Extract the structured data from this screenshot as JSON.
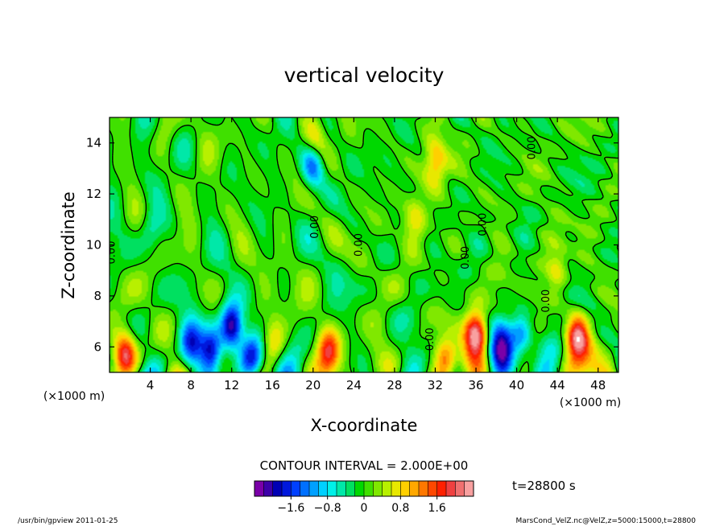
{
  "chart_data": {
    "type": "heatmap",
    "title": "vertical velocity",
    "xlabel": "X-coordinate",
    "ylabel": "Z-coordinate",
    "x_unit_left": "(×1000 m)",
    "x_unit_right": "(×1000 m)",
    "xlim": [
      0,
      50
    ],
    "ylim": [
      5,
      15
    ],
    "x_ticks": [
      4,
      8,
      12,
      16,
      20,
      24,
      28,
      32,
      36,
      40,
      44,
      48
    ],
    "y_ticks": [
      6,
      8,
      10,
      12,
      14
    ],
    "contour_interval_text": "CONTOUR INTERVAL = 2.000E+00",
    "time_text": "t=28800 s",
    "contour_labels": [
      {
        "text": "0.00",
        "x": 0.5,
        "y": 9.7
      },
      {
        "text": "0.00",
        "x": 20.5,
        "y": 10.7
      },
      {
        "text": "0.00",
        "x": 24.8,
        "y": 10.0
      },
      {
        "text": "0.00",
        "x": 31.8,
        "y": 6.3
      },
      {
        "text": "0.00",
        "x": 35.3,
        "y": 9.5
      },
      {
        "text": "0.00",
        "x": 37.0,
        "y": 10.8
      },
      {
        "text": "0.00",
        "x": 41.8,
        "y": 13.8
      },
      {
        "text": "0.00",
        "x": 43.2,
        "y": 7.8
      }
    ],
    "colorbar": {
      "colors": [
        "#7a00a8",
        "#3d00a8",
        "#0000b4",
        "#0018dc",
        "#0040ff",
        "#0070ff",
        "#00a0ff",
        "#00d0ff",
        "#00f0e8",
        "#00e8a8",
        "#00e060",
        "#00d800",
        "#40e000",
        "#80e800",
        "#b8f000",
        "#e8e800",
        "#ffd000",
        "#ffa800",
        "#ff7800",
        "#ff4800",
        "#ff2000",
        "#f04040",
        "#f07070",
        "#f8a0a0"
      ],
      "vmin": -2.4,
      "vmax": 2.4,
      "tick_values": [
        -1.6,
        -0.8,
        0,
        0.8,
        1.6
      ],
      "tick_labels": [
        "−1.6",
        "−0.8",
        "0",
        "0.8",
        "1.6"
      ]
    },
    "features": [
      {
        "x": 12.0,
        "z": 6.8,
        "w": -2.3
      },
      {
        "x": 10.0,
        "z": 5.8,
        "w": -2.0
      },
      {
        "x": 14.0,
        "z": 5.6,
        "w": -1.8
      },
      {
        "x": 8.0,
        "z": 6.2,
        "w": -1.4
      },
      {
        "x": 20.0,
        "z": 13.2,
        "w": -1.6
      },
      {
        "x": 38.5,
        "z": 6.0,
        "w": -1.8
      },
      {
        "x": 40.5,
        "z": 6.5,
        "w": -1.3
      },
      {
        "x": 36.0,
        "z": 6.5,
        "w": 2.3
      },
      {
        "x": 46.0,
        "z": 6.5,
        "w": 2.0
      },
      {
        "x": 1.5,
        "z": 5.7,
        "w": 1.8
      },
      {
        "x": 21.5,
        "z": 5.8,
        "w": 1.5
      },
      {
        "x": 33.0,
        "z": 5.5,
        "w": 1.5
      },
      {
        "x": 32.0,
        "z": 13.2,
        "w": 1.1
      },
      {
        "x": 20.2,
        "z": 14.0,
        "w": 0.9
      },
      {
        "x": 16.2,
        "z": 6.2,
        "w": 1.0
      },
      {
        "x": 4.0,
        "z": 10.5,
        "w": -0.6
      },
      {
        "x": 30.0,
        "z": 11.0,
        "w": 0.7
      },
      {
        "x": 44.0,
        "z": 9.0,
        "w": 0.8
      }
    ]
  },
  "footer": {
    "left": "/usr/bin/gpview   2011-01-25",
    "right": "MarsCond_VelZ.nc@VelZ,z=5000:15000,t=28800"
  }
}
